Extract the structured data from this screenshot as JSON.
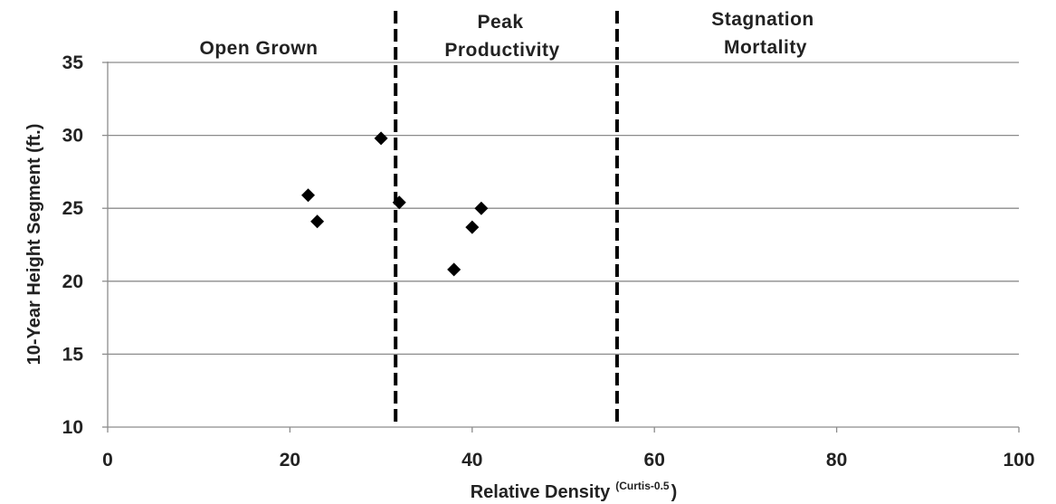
{
  "chart_data": {
    "type": "scatter",
    "title": "",
    "xlabel": "Relative Density",
    "xlabel_superscript": "(Curtis-0.5",
    "xlabel_suffix": ")",
    "ylabel": "10-Year Height Segment (ft.)",
    "xlim": [
      0,
      100
    ],
    "ylim": [
      10,
      35
    ],
    "x_ticks": [
      0,
      20,
      40,
      60,
      80,
      100
    ],
    "x_tick_labels": [
      "0",
      "20",
      "40",
      "60",
      "80",
      "100"
    ],
    "y_ticks": [
      10,
      15,
      20,
      25,
      30,
      35
    ],
    "y_tick_labels": [
      "10",
      "15",
      "20",
      "25",
      "30",
      "35"
    ],
    "grid": "horizontal",
    "marker": "diamond",
    "marker_color": "#000000",
    "points": [
      {
        "x": 22.0,
        "y": 25.9
      },
      {
        "x": 23.0,
        "y": 24.1
      },
      {
        "x": 30.0,
        "y": 29.8
      },
      {
        "x": 32.0,
        "y": 25.4
      },
      {
        "x": 38.0,
        "y": 20.8
      },
      {
        "x": 40.0,
        "y": 23.7
      },
      {
        "x": 41.0,
        "y": 25.0
      }
    ],
    "vertical_lines": [
      {
        "x": 31.6,
        "style": "dashed"
      },
      {
        "x": 55.9,
        "style": "dashed"
      }
    ],
    "zones": [
      {
        "lines": [
          "Open Grown"
        ]
      },
      {
        "lines": [
          "Peak",
          "Productivity"
        ]
      },
      {
        "lines": [
          "Stagnation",
          "Mortality"
        ]
      }
    ]
  }
}
